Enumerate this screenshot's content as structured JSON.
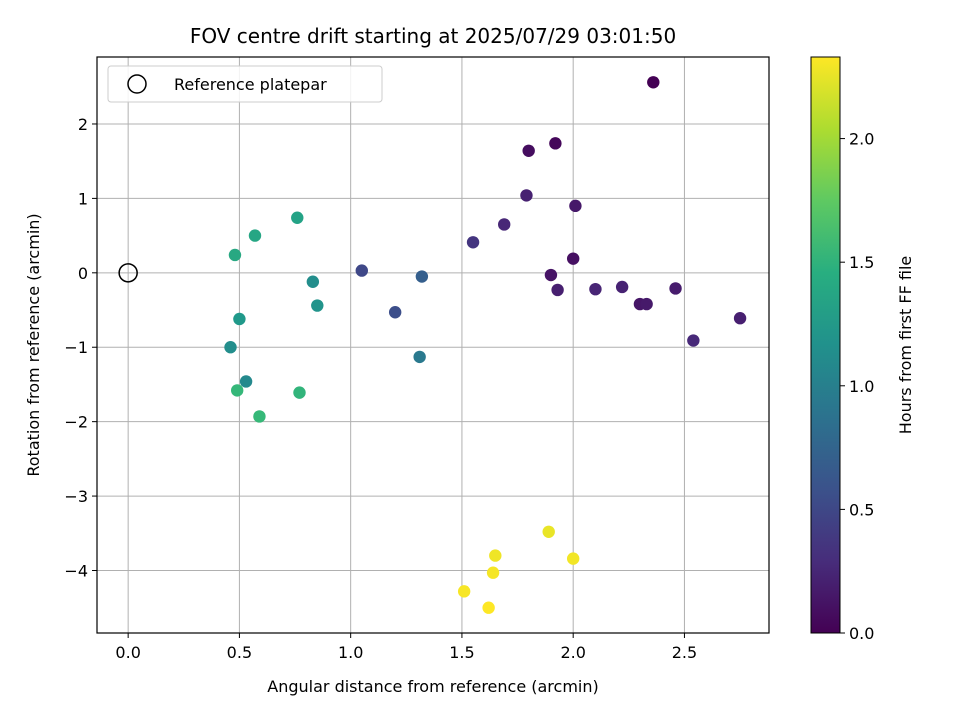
{
  "chart_data": {
    "type": "scatter",
    "title": "FOV centre drift starting at 2025/07/29 03:01:50",
    "xlabel": "Angular distance from reference (arcmin)",
    "ylabel": "Rotation from reference (arcmin)",
    "xlim": [
      -0.14,
      2.88
    ],
    "ylim": [
      -4.84,
      2.9
    ],
    "xticks": [
      0.0,
      0.5,
      1.0,
      1.5,
      2.0,
      2.5
    ],
    "xtick_labels": [
      "0.0",
      "0.5",
      "1.0",
      "1.5",
      "2.0",
      "2.5"
    ],
    "yticks": [
      -4,
      -3,
      -2,
      -1,
      0,
      1,
      2
    ],
    "ytick_labels": [
      "−4",
      "−3",
      "−2",
      "−1",
      "0",
      "1",
      "2"
    ],
    "grid": true,
    "legend": {
      "placement": "top-left",
      "entries": [
        "Reference platepar"
      ]
    },
    "reference_point": {
      "x": 0.0,
      "y": 0.0,
      "label": "Reference platepar"
    },
    "colorbar": {
      "label": "Hours from first FF file",
      "colormap": "viridis",
      "range": [
        0.0,
        2.33
      ],
      "ticks": [
        0.0,
        0.5,
        1.0,
        1.5,
        2.0
      ],
      "tick_labels": [
        "0.0",
        "0.5",
        "1.0",
        "1.5",
        "2.0"
      ]
    },
    "points": [
      {
        "x": 2.36,
        "y": 2.56,
        "c": 0.0
      },
      {
        "x": 1.92,
        "y": 1.74,
        "c": 0.04
      },
      {
        "x": 1.8,
        "y": 1.64,
        "c": 0.08
      },
      {
        "x": 2.0,
        "y": 0.19,
        "c": 0.1
      },
      {
        "x": 1.9,
        "y": -0.03,
        "c": 0.12
      },
      {
        "x": 2.3,
        "y": -0.42,
        "c": 0.14
      },
      {
        "x": 2.01,
        "y": 0.9,
        "c": 0.15
      },
      {
        "x": 2.33,
        "y": -0.42,
        "c": 0.16
      },
      {
        "x": 2.46,
        "y": -0.21,
        "c": 0.18
      },
      {
        "x": 2.75,
        "y": -0.61,
        "c": 0.2
      },
      {
        "x": 1.93,
        "y": -0.23,
        "c": 0.2
      },
      {
        "x": 1.79,
        "y": 1.04,
        "c": 0.21
      },
      {
        "x": 2.22,
        "y": -0.19,
        "c": 0.22
      },
      {
        "x": 2.1,
        "y": -0.22,
        "c": 0.24
      },
      {
        "x": 1.69,
        "y": 0.65,
        "c": 0.25
      },
      {
        "x": 2.54,
        "y": -0.91,
        "c": 0.27
      },
      {
        "x": 1.55,
        "y": 0.41,
        "c": 0.36
      },
      {
        "x": 1.05,
        "y": 0.03,
        "c": 0.5
      },
      {
        "x": 1.2,
        "y": -0.53,
        "c": 0.55
      },
      {
        "x": 1.32,
        "y": -0.05,
        "c": 0.7
      },
      {
        "x": 1.31,
        "y": -1.13,
        "c": 0.95
      },
      {
        "x": 0.53,
        "y": -1.46,
        "c": 1.1
      },
      {
        "x": 0.83,
        "y": -0.12,
        "c": 1.15
      },
      {
        "x": 0.46,
        "y": -1.0,
        "c": 1.15
      },
      {
        "x": 0.85,
        "y": -0.44,
        "c": 1.2
      },
      {
        "x": 0.5,
        "y": -0.62,
        "c": 1.25
      },
      {
        "x": 0.76,
        "y": 0.74,
        "c": 1.35
      },
      {
        "x": 0.57,
        "y": 0.5,
        "c": 1.38
      },
      {
        "x": 0.48,
        "y": 0.24,
        "c": 1.4
      },
      {
        "x": 0.77,
        "y": -1.61,
        "c": 1.52
      },
      {
        "x": 0.49,
        "y": -1.58,
        "c": 1.55
      },
      {
        "x": 0.59,
        "y": -1.93,
        "c": 1.56
      },
      {
        "x": 1.89,
        "y": -3.48,
        "c": 2.26
      },
      {
        "x": 1.65,
        "y": -3.8,
        "c": 2.28
      },
      {
        "x": 2.0,
        "y": -3.84,
        "c": 2.29
      },
      {
        "x": 1.64,
        "y": -4.03,
        "c": 2.3
      },
      {
        "x": 1.51,
        "y": -4.28,
        "c": 2.31
      },
      {
        "x": 1.62,
        "y": -4.5,
        "c": 2.33
      }
    ]
  }
}
